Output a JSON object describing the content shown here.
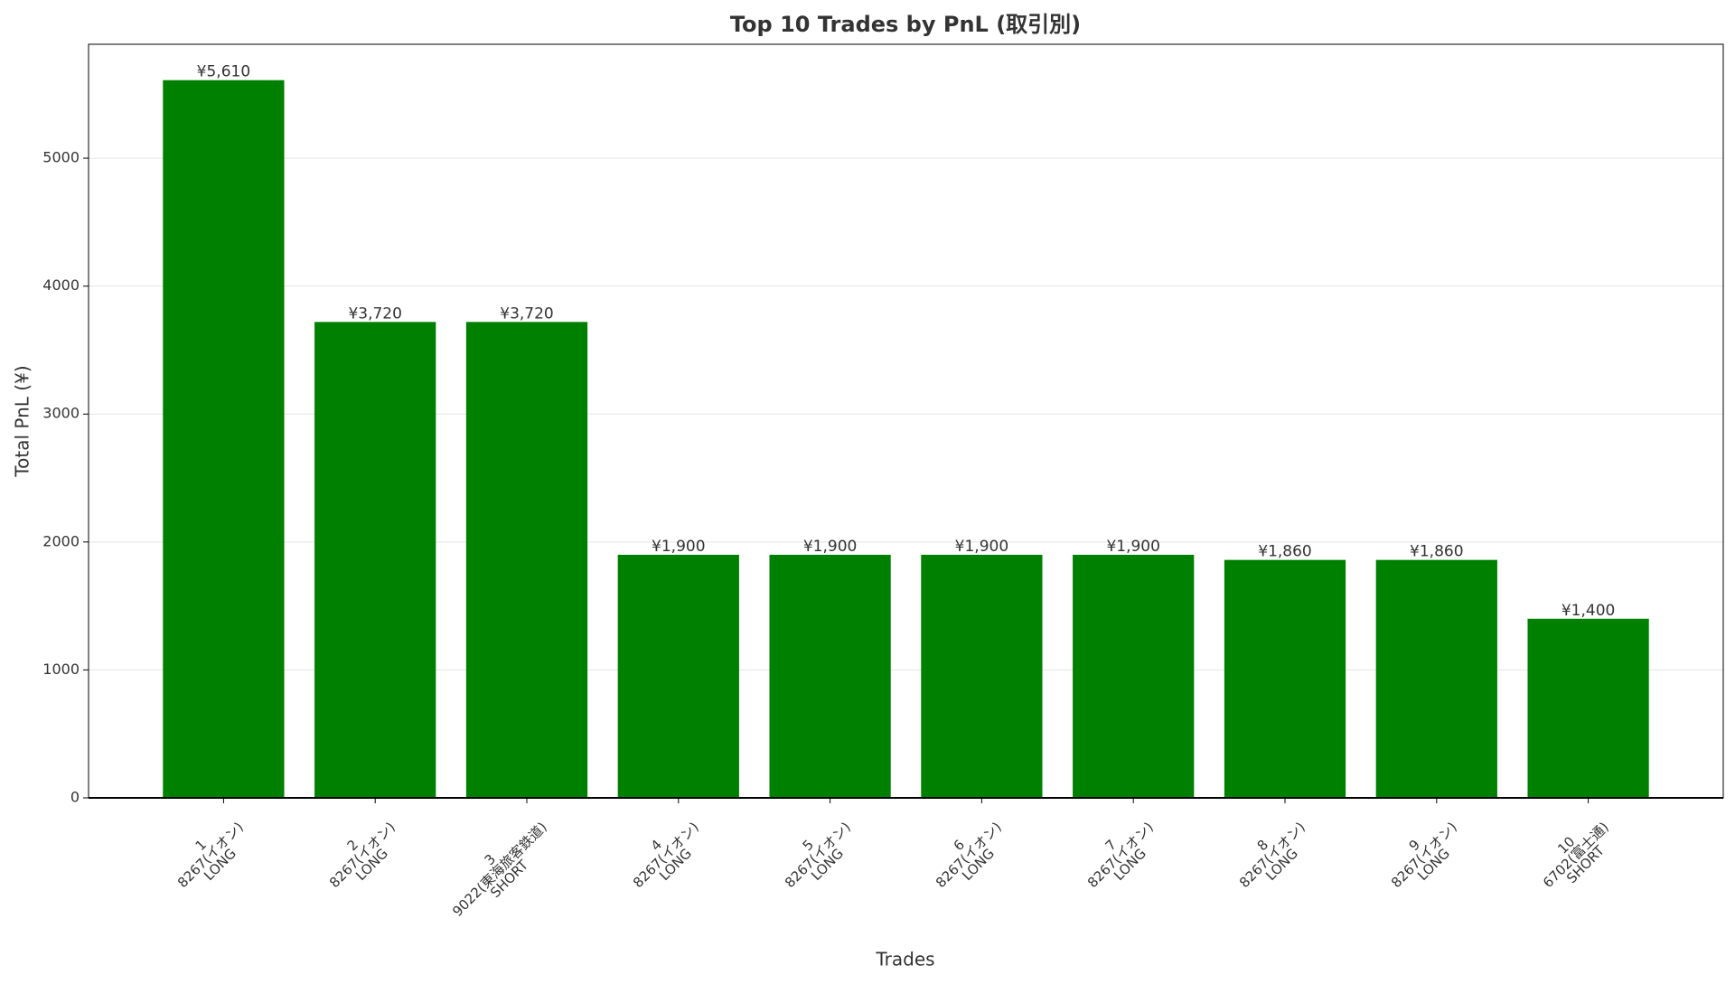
{
  "chart_data": {
    "type": "bar",
    "title": "Top 10 Trades by PnL (取引別)",
    "x_label": "Trades",
    "y_label": "Total PnL (¥)",
    "categories": [
      "1\n8267(イオン)\nLONG",
      "2\n8267(イオン)\nLONG",
      "3\n9022(東海旅客鉄道)\nSHORT",
      "4\n8267(イオン)\nLONG",
      "5\n8267(イオン)\nLONG",
      "6\n8267(イオン)\nLONG",
      "7\n8267(イオン)\nLONG",
      "8\n8267(イオン)\nLONG",
      "9\n8267(イオン)\nLONG",
      "10\n6702(富士通)\nSHORT"
    ],
    "values": [
      5610,
      3720,
      3720,
      1900,
      1900,
      1900,
      1900,
      1860,
      1860,
      1400
    ],
    "value_labels": [
      "¥5,610",
      "¥3,720",
      "¥3,720",
      "¥1,900",
      "¥1,900",
      "¥1,900",
      "¥1,900",
      "¥1,860",
      "¥1,860",
      "¥1,400"
    ],
    "color": "#008000",
    "ylim": [
      0,
      5890.5
    ],
    "yticks": [
      0,
      1000,
      2000,
      3000,
      4000,
      5000
    ],
    "grid": true
  }
}
